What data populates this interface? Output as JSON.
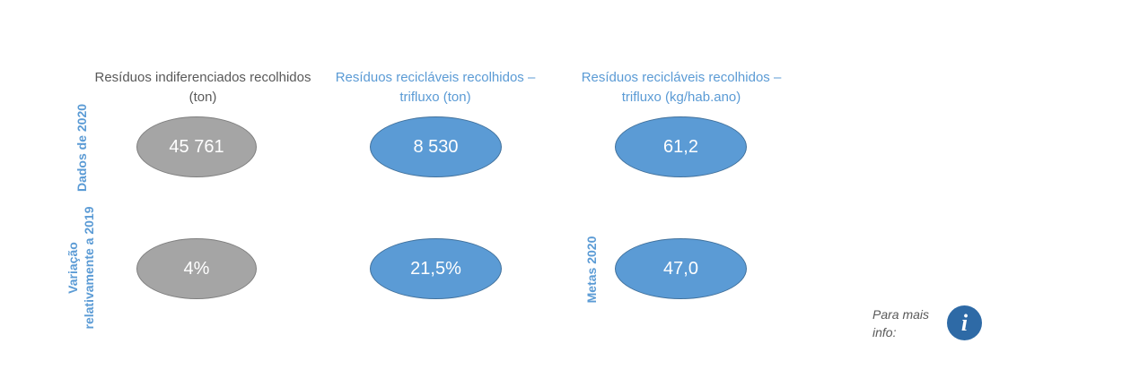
{
  "headers": {
    "col1": "Resíduos indiferenciados recolhidos (ton)",
    "col2": "Resíduos recicláveis recolhidos – trifluxo (ton)",
    "col3": "Resíduos recicláveis recolhidos – trifluxo (kg/hab.ano)"
  },
  "row_labels": {
    "row1": "Dados de 2020",
    "row2": "Variação relativamente a 2019",
    "row2_col3": "Metas 2020"
  },
  "values": {
    "r1c1": "45 761",
    "r1c2": "8 530",
    "r1c3": "61,2",
    "r2c1": "4%",
    "r2c2": "21,5%",
    "r2c3": "47,0"
  },
  "info": {
    "text": "Para mais info:",
    "icon_glyph": "i"
  },
  "colors": {
    "gray_fill": "#a5a5a5",
    "blue_fill": "#5b9bd5",
    "label_blue": "#5b9bd5",
    "info_icon": "#2e6aa6"
  }
}
